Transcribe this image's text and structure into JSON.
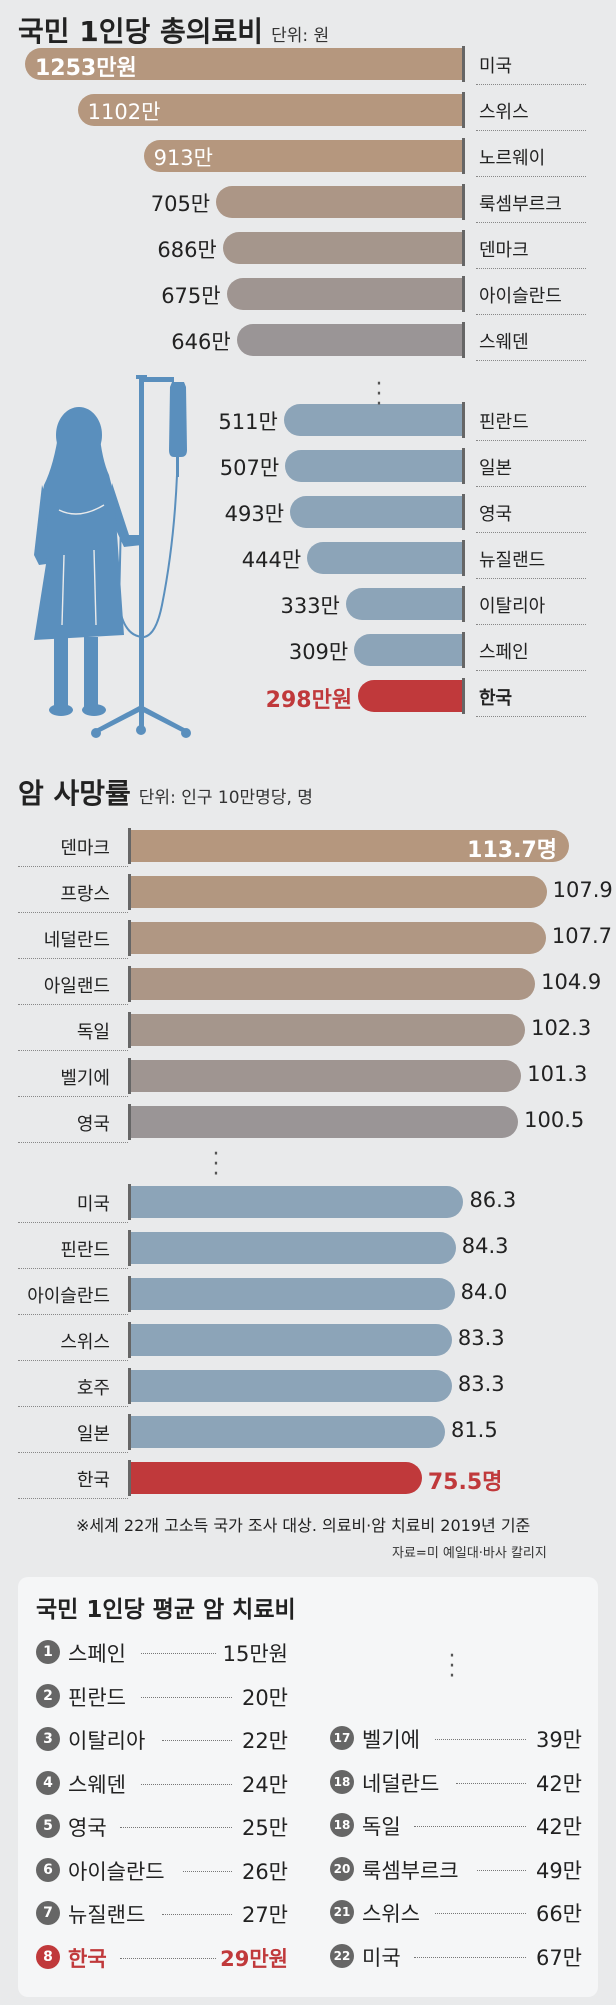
{
  "chart_data": [
    {
      "type": "bar",
      "title": "국민 1인당 총의료비",
      "unit_label": "단위: 원",
      "categories": [
        "미국",
        "스위스",
        "노르웨이",
        "룩셈부르크",
        "덴마크",
        "아이슬란드",
        "스웨덴",
        "핀란드",
        "일본",
        "영국",
        "뉴질랜드",
        "이탈리아",
        "스페인",
        "한국"
      ],
      "values": [
        1253,
        1102,
        913,
        705,
        686,
        675,
        646,
        511,
        507,
        493,
        444,
        333,
        309,
        298
      ],
      "value_labels": [
        "1253만원",
        "1102만",
        "913만",
        "705만",
        "686만",
        "675만",
        "646만",
        "511만",
        "507만",
        "493만",
        "444만",
        "333만",
        "309만",
        "298만원"
      ],
      "group": [
        "top",
        "top",
        "top",
        "top",
        "top",
        "top",
        "top",
        "bottom",
        "bottom",
        "bottom",
        "bottom",
        "bottom",
        "bottom",
        "korea"
      ],
      "colors": {
        "top": "#b5977e",
        "top_gray": "#9a9596",
        "bottom": "#8ca4b8",
        "korea": "#c0393b"
      }
    },
    {
      "type": "bar",
      "title": "암 사망률",
      "unit_label": "단위: 인구 10만명당, 명",
      "categories": [
        "덴마크",
        "프랑스",
        "네덜란드",
        "아일랜드",
        "독일",
        "벨기에",
        "영국",
        "미국",
        "핀란드",
        "아이슬란드",
        "스위스",
        "호주",
        "일본",
        "한국"
      ],
      "values": [
        113.7,
        107.9,
        107.7,
        104.9,
        102.3,
        101.3,
        100.5,
        86.3,
        84.3,
        84.0,
        83.3,
        83.3,
        81.5,
        75.5
      ],
      "value_labels": [
        "113.7명",
        "107.9",
        "107.7",
        "104.9",
        "102.3",
        "101.3",
        "100.5",
        "86.3",
        "84.3",
        "84.0",
        "83.3",
        "83.3",
        "81.5",
        "75.5명"
      ],
      "group": [
        "top",
        "top",
        "top",
        "top",
        "top",
        "top",
        "top",
        "bottom",
        "bottom",
        "bottom",
        "bottom",
        "bottom",
        "bottom",
        "korea"
      ]
    }
  ],
  "note": "※세계 22개 고소득 국가 조사 대상. 의료비·암 치료비 2019년 기준",
  "source": "자료=미 예일대·바사 칼리지",
  "treatment": {
    "title": "국민 1인당 평균 암 치료비",
    "left": [
      {
        "rank": "1",
        "name": "스페인",
        "value": "15만원"
      },
      {
        "rank": "2",
        "name": "핀란드",
        "value": "20만"
      },
      {
        "rank": "3",
        "name": "이탈리아",
        "value": "22만"
      },
      {
        "rank": "4",
        "name": "스웨덴",
        "value": "24만"
      },
      {
        "rank": "5",
        "name": "영국",
        "value": "25만"
      },
      {
        "rank": "6",
        "name": "아이슬란드",
        "value": "26만"
      },
      {
        "rank": "7",
        "name": "뉴질랜드",
        "value": "27만"
      },
      {
        "rank": "8",
        "name": "한국",
        "value": "29만원"
      }
    ],
    "right": [
      {
        "rank": "17",
        "name": "벨기에",
        "value": "39만"
      },
      {
        "rank": "18",
        "name": "네덜란드",
        "value": "42만"
      },
      {
        "rank": "18",
        "name": "독일",
        "value": "42만"
      },
      {
        "rank": "20",
        "name": "룩셈부르크",
        "value": "49만"
      },
      {
        "rank": "21",
        "name": "스위스",
        "value": "66만"
      },
      {
        "rank": "22",
        "name": "미국",
        "value": "67만"
      }
    ]
  }
}
